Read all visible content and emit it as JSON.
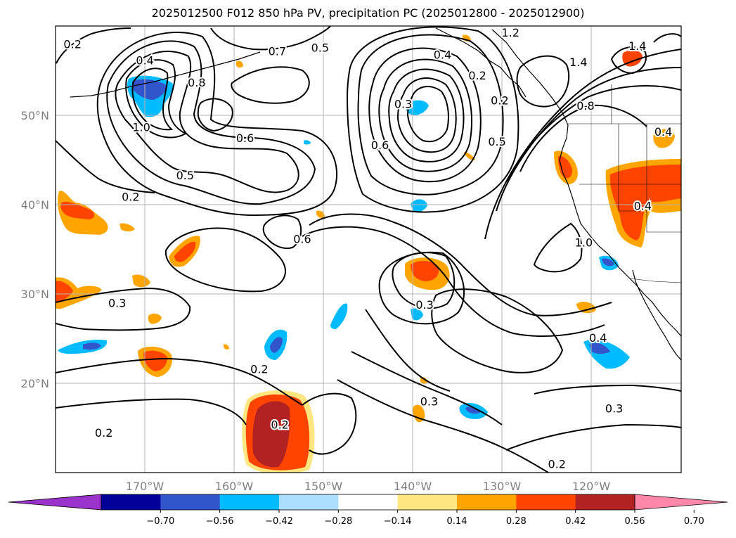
{
  "title": "2025012500 F012 850 hPa PV, precipitation PC (2025012800 - 2025012900)",
  "chart_data": {
    "type": "contour_map",
    "title": "2025012500 F012 850 hPa PV, precipitation PC (2025012800 - 2025012900)",
    "xlabel": "",
    "ylabel": "",
    "lon_range": [
      -180,
      -110
    ],
    "lat_range": [
      10,
      60
    ],
    "grid": true,
    "lat_ticks": [
      {
        "value": 20,
        "label": "20°N"
      },
      {
        "value": 30,
        "label": "30°N"
      },
      {
        "value": 40,
        "label": "40°N"
      },
      {
        "value": 50,
        "label": "50°N"
      }
    ],
    "lon_ticks": [
      {
        "value": -170,
        "label": "170°W"
      },
      {
        "value": -160,
        "label": "160°W"
      },
      {
        "value": -150,
        "label": "150°W"
      },
      {
        "value": -140,
        "label": "140°W"
      },
      {
        "value": -130,
        "label": "130°W"
      },
      {
        "value": -120,
        "label": "120°W"
      }
    ],
    "colorbar": {
      "placement": "bottom",
      "extend": "both",
      "levels": [
        -0.7,
        -0.56,
        -0.42,
        -0.28,
        -0.14,
        0.14,
        0.28,
        0.42,
        0.56,
        0.7
      ],
      "tick_labels": [
        "−0.70",
        "−0.56",
        "−0.42",
        "−0.28",
        "−0.14",
        "0.14",
        "0.28",
        "0.42",
        "0.56",
        "0.70"
      ],
      "colors": [
        "#9933cc",
        "#000099",
        "#3355cc",
        "#00bbff",
        "#aaddff",
        "#ffffff",
        "#ffe680",
        "#ffa500",
        "#ff4400",
        "#b22222",
        "#ff88aa"
      ]
    },
    "contour_labels": [
      {
        "lon": -178.1,
        "lat": 58.0,
        "text": "0.2"
      },
      {
        "lon": -170.0,
        "lat": 56.2,
        "text": "0.4"
      },
      {
        "lon": -164.2,
        "lat": 53.7,
        "text": "0.8"
      },
      {
        "lon": -170.4,
        "lat": 48.7,
        "text": "1.0"
      },
      {
        "lon": -158.8,
        "lat": 47.5,
        "text": "0.6"
      },
      {
        "lon": -165.5,
        "lat": 43.3,
        "text": "0.5"
      },
      {
        "lon": -171.6,
        "lat": 40.9,
        "text": "0.2"
      },
      {
        "lon": -155.2,
        "lat": 57.2,
        "text": "0.7"
      },
      {
        "lon": -150.4,
        "lat": 57.6,
        "text": "0.5"
      },
      {
        "lon": -152.4,
        "lat": 36.2,
        "text": "0.6"
      },
      {
        "lon": -141.1,
        "lat": 51.3,
        "text": "0.3"
      },
      {
        "lon": -136.7,
        "lat": 56.8,
        "text": "0.4"
      },
      {
        "lon": -130.3,
        "lat": 51.7,
        "text": "0.2"
      },
      {
        "lon": -143.7,
        "lat": 46.7,
        "text": "0.6"
      },
      {
        "lon": -130.6,
        "lat": 47.1,
        "text": "0.5"
      },
      {
        "lon": -132.8,
        "lat": 54.5,
        "text": "0.2"
      },
      {
        "lon": -129.1,
        "lat": 59.3,
        "text": "1.2"
      },
      {
        "lon": -121.5,
        "lat": 56.0,
        "text": "1.4"
      },
      {
        "lon": -114.9,
        "lat": 57.8,
        "text": "1.4"
      },
      {
        "lon": -120.7,
        "lat": 51.1,
        "text": "0.8"
      },
      {
        "lon": -112.0,
        "lat": 48.2,
        "text": "0.4"
      },
      {
        "lon": -114.3,
        "lat": 39.9,
        "text": "0.4"
      },
      {
        "lon": -120.9,
        "lat": 35.8,
        "text": "1.0"
      },
      {
        "lon": -138.7,
        "lat": 28.8,
        "text": "0.3"
      },
      {
        "lon": -119.3,
        "lat": 25.1,
        "text": "0.4"
      },
      {
        "lon": -117.5,
        "lat": 17.2,
        "text": "0.3"
      },
      {
        "lon": -173.1,
        "lat": 29.0,
        "text": "0.3"
      },
      {
        "lon": -157.2,
        "lat": 21.6,
        "text": "0.2"
      },
      {
        "lon": -174.6,
        "lat": 14.5,
        "text": "0.2"
      },
      {
        "lon": -154.9,
        "lat": 15.4,
        "text": "0.2"
      },
      {
        "lon": -138.2,
        "lat": 18.0,
        "text": "0.3"
      },
      {
        "lon": -123.9,
        "lat": 11.0,
        "text": "0.2"
      }
    ]
  }
}
